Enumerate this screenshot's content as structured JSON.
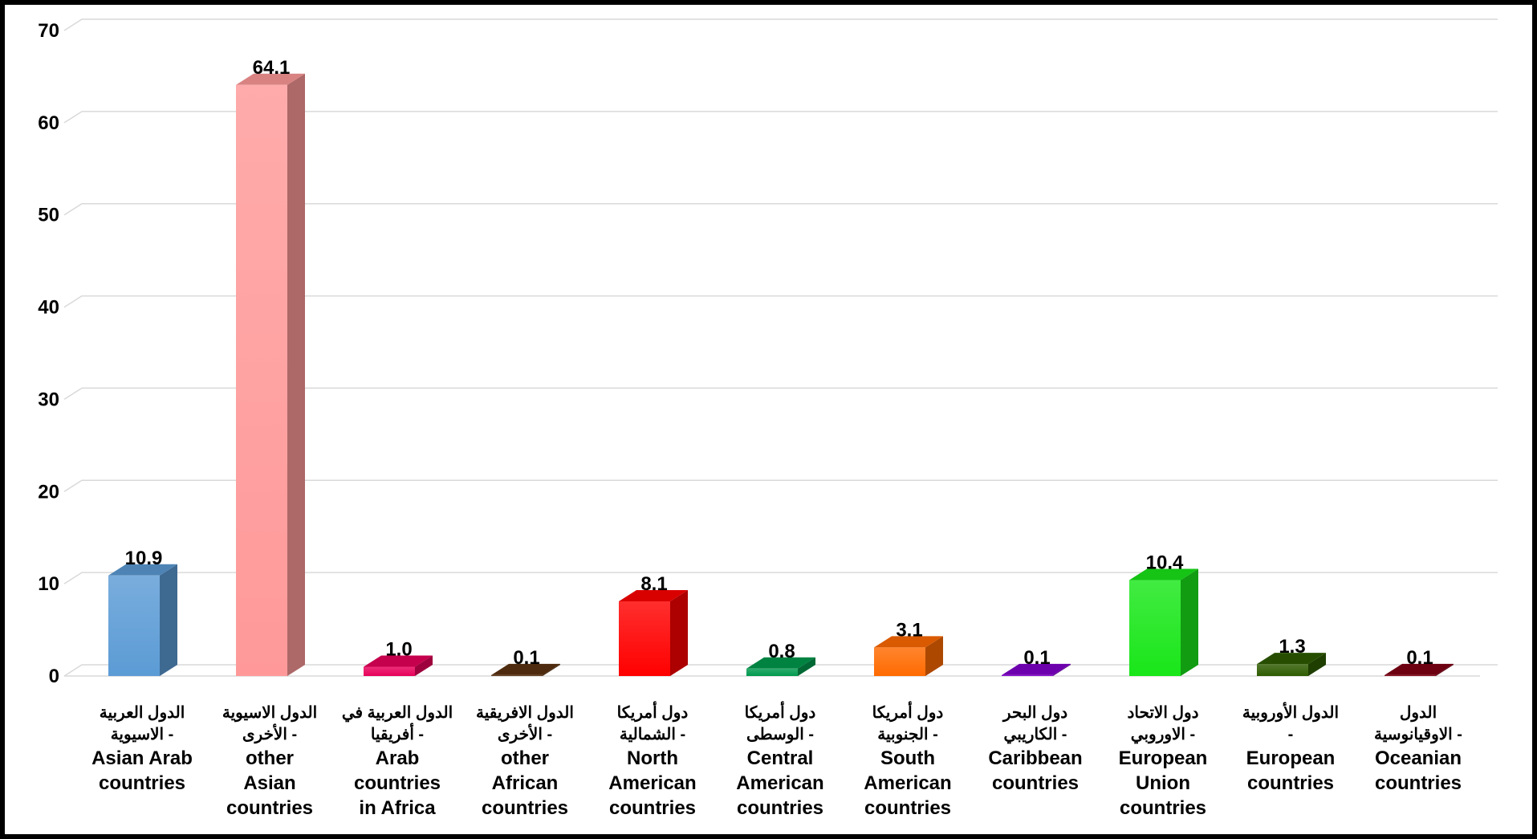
{
  "chart_data": {
    "type": "bar",
    "title": "",
    "xlabel": "",
    "ylabel": "",
    "ylim": [
      0,
      70
    ],
    "yticks": [
      "0",
      "10",
      "20",
      "30",
      "40",
      "50",
      "60",
      "70"
    ],
    "grid": true,
    "legend": "none",
    "style": "3d",
    "categories": [
      {
        "ar": [
          "الدول العربية",
          "- الاسيوية"
        ],
        "en": [
          "Asian Arab",
          "countries"
        ]
      },
      {
        "ar": [
          "الدول الاسيوية",
          "- الأخرى"
        ],
        "en": [
          "other",
          "Asian",
          "countries"
        ]
      },
      {
        "ar": [
          "الدول العربية في",
          "- أفريقيا"
        ],
        "en": [
          "Arab",
          "countries",
          "in Africa"
        ]
      },
      {
        "ar": [
          "الدول الافريقية",
          "- الأخرى"
        ],
        "en": [
          "other",
          "African",
          "countries"
        ]
      },
      {
        "ar": [
          "دول أمريكا",
          "- الشمالية"
        ],
        "en": [
          "North",
          "American",
          "countries"
        ]
      },
      {
        "ar": [
          "دول أمريكا",
          "- الوسطى"
        ],
        "en": [
          "Central",
          "American",
          "countries"
        ]
      },
      {
        "ar": [
          "دول أمريكا",
          "- الجنوبية"
        ],
        "en": [
          "South",
          "American",
          "countries"
        ]
      },
      {
        "ar": [
          "دول البحر",
          "- الكاريبي"
        ],
        "en": [
          "Caribbean",
          "countries"
        ]
      },
      {
        "ar": [
          "دول الاتحاد",
          "- الاوروبي"
        ],
        "en": [
          "European",
          "Union",
          "countries"
        ]
      },
      {
        "ar": [
          "الدول الأوروبية",
          "-"
        ],
        "en": [
          "European",
          "countries"
        ]
      },
      {
        "ar": [
          "الدول",
          "- الاوقيانوسية"
        ],
        "en": [
          "Oceanian",
          "countries"
        ]
      }
    ],
    "values": [
      10.9,
      64.1,
      1.0,
      0.1,
      8.1,
      0.8,
      3.1,
      0.1,
      10.4,
      1.3,
      0.1
    ],
    "value_labels": [
      "10.9",
      "64.1",
      "1.0",
      "0.1",
      "8.1",
      "0.8",
      "3.1",
      "0.1",
      "10.4",
      "1.3",
      "0.1"
    ],
    "colors": [
      "#5b9bd5",
      "#ff9999",
      "#e8005a",
      "#5c3310",
      "#ff0000",
      "#00994d",
      "#ff6a00",
      "#8000cc",
      "#19e619",
      "#2e5c00",
      "#800014"
    ]
  }
}
